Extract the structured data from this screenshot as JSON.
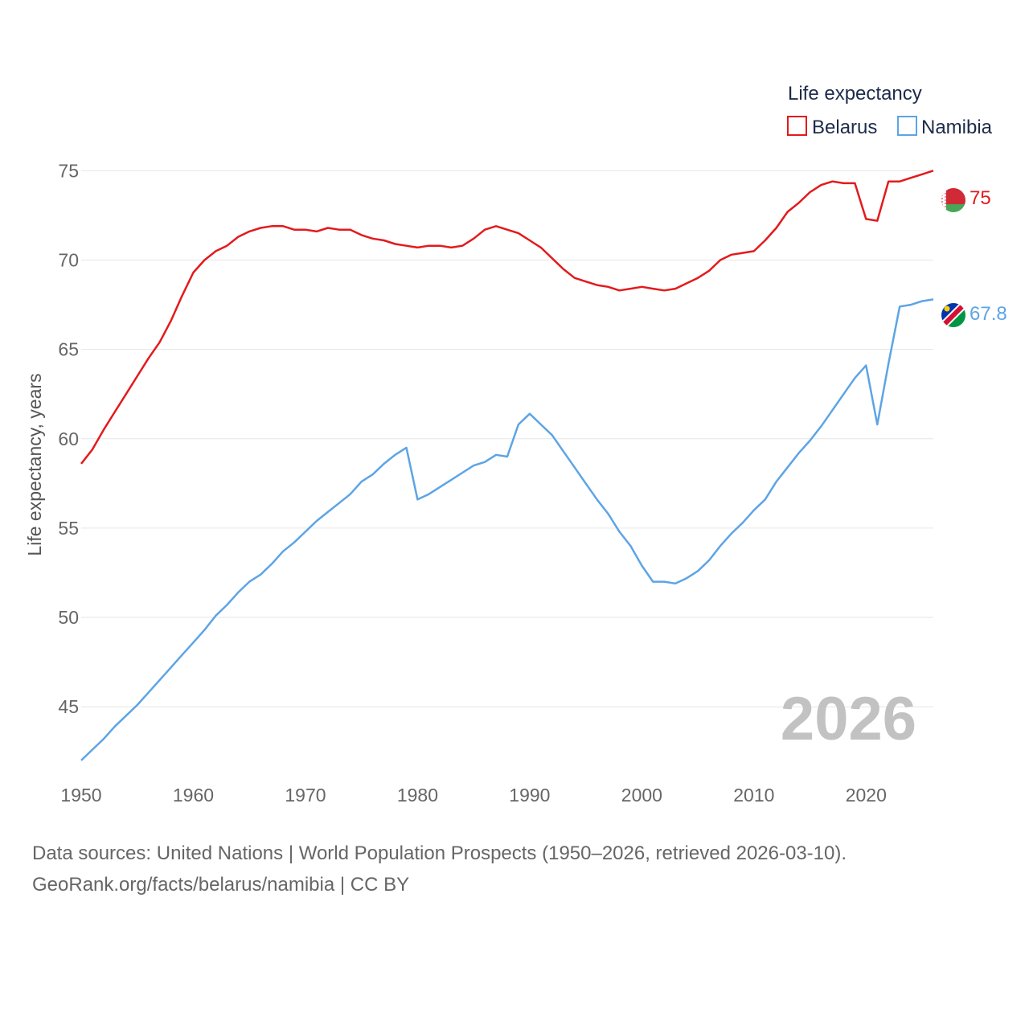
{
  "chart_data": {
    "type": "line",
    "title": "",
    "xlabel": "",
    "ylabel": "Life expectancy, years",
    "xlim": [
      1950,
      2026
    ],
    "ylim": [
      41.5,
      76.5
    ],
    "x_ticks": [
      1950,
      1960,
      1970,
      1980,
      1990,
      2000,
      2010,
      2020
    ],
    "y_ticks": [
      45,
      50,
      55,
      60,
      65,
      70,
      75
    ],
    "legend_title": "Life expectancy",
    "legend_position": "top-right",
    "year_watermark": "2026",
    "series": [
      {
        "name": "Belarus",
        "color": "#e31a1c",
        "end_label": "75",
        "flag_icon": "belarus-flag-icon",
        "x": [
          1950,
          1951,
          1952,
          1953,
          1954,
          1955,
          1956,
          1957,
          1958,
          1959,
          1960,
          1961,
          1962,
          1963,
          1964,
          1965,
          1966,
          1967,
          1968,
          1969,
          1970,
          1971,
          1972,
          1973,
          1974,
          1975,
          1976,
          1977,
          1978,
          1979,
          1980,
          1981,
          1982,
          1983,
          1984,
          1985,
          1986,
          1987,
          1988,
          1989,
          1990,
          1991,
          1992,
          1993,
          1994,
          1995,
          1996,
          1997,
          1998,
          1999,
          2000,
          2001,
          2002,
          2003,
          2004,
          2005,
          2006,
          2007,
          2008,
          2009,
          2010,
          2011,
          2012,
          2013,
          2014,
          2015,
          2016,
          2017,
          2018,
          2019,
          2020,
          2021,
          2022,
          2023,
          2024,
          2025,
          2026
        ],
        "values": [
          58.6,
          59.4,
          60.5,
          61.5,
          62.5,
          63.5,
          64.5,
          65.4,
          66.6,
          68.0,
          69.3,
          70.0,
          70.5,
          70.8,
          71.3,
          71.6,
          71.8,
          71.9,
          71.9,
          71.7,
          71.7,
          71.6,
          71.8,
          71.7,
          71.7,
          71.4,
          71.2,
          71.1,
          70.9,
          70.8,
          70.7,
          70.8,
          70.8,
          70.7,
          70.8,
          71.2,
          71.7,
          71.9,
          71.7,
          71.5,
          71.1,
          70.7,
          70.1,
          69.5,
          69.0,
          68.8,
          68.6,
          68.5,
          68.3,
          68.4,
          68.5,
          68.4,
          68.3,
          68.4,
          68.7,
          69.0,
          69.4,
          70.0,
          70.3,
          70.4,
          70.5,
          71.1,
          71.8,
          72.7,
          73.2,
          73.8,
          74.2,
          74.4,
          74.3,
          74.3,
          72.3,
          72.2,
          74.4,
          74.4,
          74.6,
          74.8,
          75.0
        ]
      },
      {
        "name": "Namibia",
        "color": "#5da4e6",
        "end_label": "67.8",
        "flag_icon": "namibia-flag-icon",
        "x": [
          1950,
          1951,
          1952,
          1953,
          1954,
          1955,
          1956,
          1957,
          1958,
          1959,
          1960,
          1961,
          1962,
          1963,
          1964,
          1965,
          1966,
          1967,
          1968,
          1969,
          1970,
          1971,
          1972,
          1973,
          1974,
          1975,
          1976,
          1977,
          1978,
          1979,
          1980,
          1981,
          1982,
          1983,
          1984,
          1985,
          1986,
          1987,
          1988,
          1989,
          1990,
          1991,
          1992,
          1993,
          1994,
          1995,
          1996,
          1997,
          1998,
          1999,
          2000,
          2001,
          2002,
          2003,
          2004,
          2005,
          2006,
          2007,
          2008,
          2009,
          2010,
          2011,
          2012,
          2013,
          2014,
          2015,
          2016,
          2017,
          2018,
          2019,
          2020,
          2021,
          2022,
          2023,
          2024,
          2025,
          2026
        ],
        "values": [
          42.0,
          42.6,
          43.2,
          43.9,
          44.5,
          45.1,
          45.8,
          46.5,
          47.2,
          47.9,
          48.6,
          49.3,
          50.1,
          50.7,
          51.4,
          52.0,
          52.4,
          53.0,
          53.7,
          54.2,
          54.8,
          55.4,
          55.9,
          56.4,
          56.9,
          57.6,
          58.0,
          58.6,
          59.1,
          59.5,
          56.6,
          56.9,
          57.3,
          57.7,
          58.1,
          58.5,
          58.7,
          59.1,
          59.0,
          60.8,
          61.4,
          60.8,
          60.2,
          59.3,
          58.4,
          57.5,
          56.6,
          55.8,
          54.8,
          54.0,
          52.9,
          52.0,
          52.0,
          51.9,
          52.2,
          52.6,
          53.2,
          54.0,
          54.7,
          55.3,
          56.0,
          56.6,
          57.6,
          58.4,
          59.2,
          59.9,
          60.7,
          61.6,
          62.5,
          63.4,
          64.1,
          60.8,
          64.2,
          67.4,
          67.5,
          67.7,
          67.8
        ]
      }
    ]
  },
  "source": {
    "line1": "Data sources: United Nations | World Population Prospects (1950–2026, retrieved 2026-03-10).",
    "line2": "GeoRank.org/facts/belarus/namibia | CC BY"
  }
}
